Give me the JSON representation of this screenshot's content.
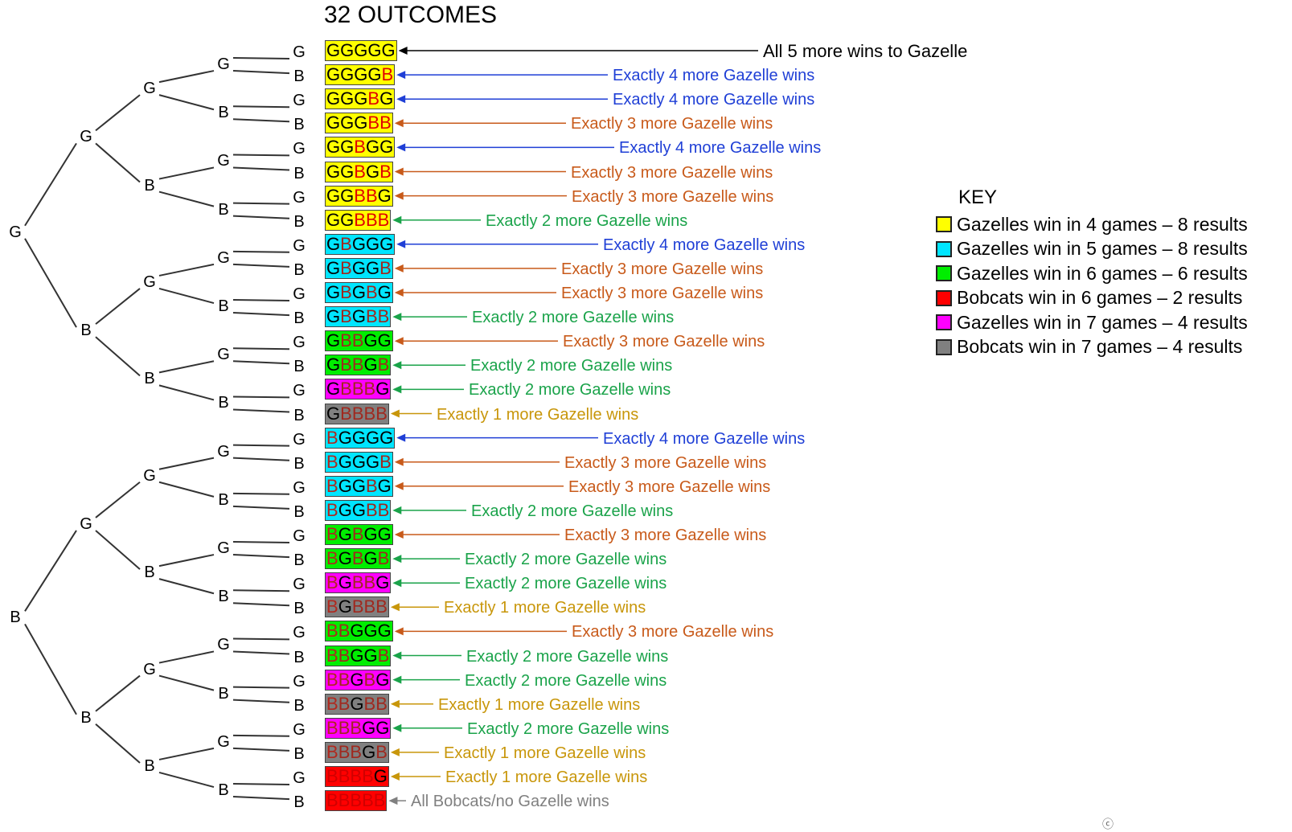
{
  "title": "32 OUTCOMES",
  "colors": {
    "yellow": "#ffff00",
    "cyan": "#00e5ff",
    "green": "#00ee00",
    "red": "#ff0000",
    "magenta": "#ff00ff",
    "gray": "#808080"
  },
  "tree": {
    "level1": [
      "G",
      "B"
    ],
    "level2": [
      "G",
      "B",
      "G",
      "B"
    ],
    "level3": [
      "G",
      "B",
      "G",
      "B",
      "G",
      "B",
      "G",
      "B"
    ],
    "level4": [
      "G",
      "B",
      "G",
      "B",
      "G",
      "B",
      "G",
      "B",
      "G",
      "B",
      "G",
      "B",
      "G",
      "B",
      "G",
      "B"
    ],
    "level5": [
      "G",
      "B",
      "G",
      "B",
      "G",
      "B",
      "G",
      "B",
      "G",
      "B",
      "G",
      "B",
      "G",
      "B",
      "G",
      "B",
      "G",
      "B",
      "G",
      "B",
      "G",
      "B",
      "G",
      "B",
      "G",
      "B",
      "G",
      "B",
      "G",
      "B",
      "G",
      "B"
    ]
  },
  "outcomes": [
    {
      "seq": "GGGGG",
      "bg": "yellow",
      "label": "All 5 more wins to Gazelle",
      "label_color": "#000000"
    },
    {
      "seq": "GGGGB",
      "bg": "yellow",
      "label": "Exactly 4 more Gazelle wins",
      "label_color": "#1f3fd6"
    },
    {
      "seq": "GGGBG",
      "bg": "yellow",
      "label": "Exactly 4 more Gazelle wins",
      "label_color": "#1f3fd6"
    },
    {
      "seq": "GGGBB",
      "bg": "yellow",
      "label": "Exactly 3 more Gazelle wins",
      "label_color": "#c85a1a"
    },
    {
      "seq": "GGBGG",
      "bg": "yellow",
      "label": "Exactly 4 more Gazelle wins",
      "label_color": "#1f3fd6"
    },
    {
      "seq": "GGBGB",
      "bg": "yellow",
      "label": "Exactly 3 more Gazelle wins",
      "label_color": "#c85a1a"
    },
    {
      "seq": "GGBBG",
      "bg": "yellow",
      "label": "Exactly 3 more Gazelle wins",
      "label_color": "#c85a1a"
    },
    {
      "seq": "GGBBB",
      "bg": "yellow",
      "label": "Exactly 2 more Gazelle wins",
      "label_color": "#1aa34a"
    },
    {
      "seq": "GBGGG",
      "bg": "cyan",
      "label": "Exactly 4 more Gazelle wins",
      "label_color": "#1f3fd6"
    },
    {
      "seq": "GBGGB",
      "bg": "cyan",
      "label": "Exactly 3 more Gazelle wins",
      "label_color": "#c85a1a"
    },
    {
      "seq": "GBGBG",
      "bg": "cyan",
      "label": "Exactly 3 more Gazelle wins",
      "label_color": "#c85a1a"
    },
    {
      "seq": "GBGBB",
      "bg": "cyan",
      "label": "Exactly 2 more Gazelle wins",
      "label_color": "#1aa34a"
    },
    {
      "seq": "GBBGG",
      "bg": "green",
      "label": "Exactly 3 more Gazelle wins",
      "label_color": "#c85a1a"
    },
    {
      "seq": "GBBGB",
      "bg": "green",
      "label": "Exactly 2 more Gazelle wins",
      "label_color": "#1aa34a"
    },
    {
      "seq": "GBBBG",
      "bg": "magenta",
      "label": "Exactly 2 more Gazelle wins",
      "label_color": "#1aa34a"
    },
    {
      "seq": "GBBBB",
      "bg": "gray",
      "label": "Exactly 1 more Gazelle wins",
      "label_color": "#c8960a"
    },
    {
      "seq": "BGGGG",
      "bg": "cyan",
      "label": "Exactly 4 more Gazelle wins",
      "label_color": "#1f3fd6"
    },
    {
      "seq": "BGGGB",
      "bg": "cyan",
      "label": "Exactly 3 more Gazelle wins",
      "label_color": "#c85a1a"
    },
    {
      "seq": "BGGBG",
      "bg": "cyan",
      "label": "Exactly 3 more Gazelle wins",
      "label_color": "#c85a1a"
    },
    {
      "seq": "BGGBB",
      "bg": "cyan",
      "label": "Exactly 2 more Gazelle wins",
      "label_color": "#1aa34a"
    },
    {
      "seq": "BGBGG",
      "bg": "green",
      "label": "Exactly 3 more Gazelle wins",
      "label_color": "#c85a1a"
    },
    {
      "seq": "BGBGB",
      "bg": "green",
      "label": "Exactly 2 more Gazelle wins",
      "label_color": "#1aa34a"
    },
    {
      "seq": "BGBBG",
      "bg": "magenta",
      "label": "Exactly 2 more Gazelle wins",
      "label_color": "#1aa34a"
    },
    {
      "seq": "BGBBB",
      "bg": "gray",
      "label": "Exactly 1 more Gazelle wins",
      "label_color": "#c8960a"
    },
    {
      "seq": "BBGGG",
      "bg": "green",
      "label": "Exactly 3 more Gazelle wins",
      "label_color": "#c85a1a"
    },
    {
      "seq": "BBGGB",
      "bg": "green",
      "label": "Exactly 2 more Gazelle wins",
      "label_color": "#1aa34a"
    },
    {
      "seq": "BBGBG",
      "bg": "magenta",
      "label": "Exactly 2 more Gazelle wins",
      "label_color": "#1aa34a"
    },
    {
      "seq": "BBGBB",
      "bg": "gray",
      "label": "Exactly 1 more Gazelle wins",
      "label_color": "#c8960a"
    },
    {
      "seq": "BBBGG",
      "bg": "magenta",
      "label": "Exactly 2 more Gazelle wins",
      "label_color": "#1aa34a"
    },
    {
      "seq": "BBBGB",
      "bg": "gray",
      "label": "Exactly 1 more Gazelle wins",
      "label_color": "#c8960a"
    },
    {
      "seq": "BBBBG",
      "bg": "red",
      "label": "Exactly 1 more Gazelle wins",
      "label_color": "#c8960a"
    },
    {
      "seq": "BBBBB",
      "bg": "red",
      "label": "All Bobcats/no Gazelle wins",
      "label_color": "#808080"
    }
  ],
  "key": {
    "title": "KEY",
    "items": [
      {
        "color": "yellow",
        "text": "Gazelles win in 4 games – 8 results"
      },
      {
        "color": "cyan",
        "text": "Gazelles win in 5 games – 8 results"
      },
      {
        "color": "green",
        "text": "Gazelles win in 6 games – 6 results"
      },
      {
        "color": "red",
        "text": "Bobcats win in 6 games  – 2 results"
      },
      {
        "color": "magenta",
        "text": "Gazelles win in 7 games – 4 results"
      },
      {
        "color": "gray",
        "text": "Bobcats win in 7 games  – 4 results"
      }
    ]
  }
}
